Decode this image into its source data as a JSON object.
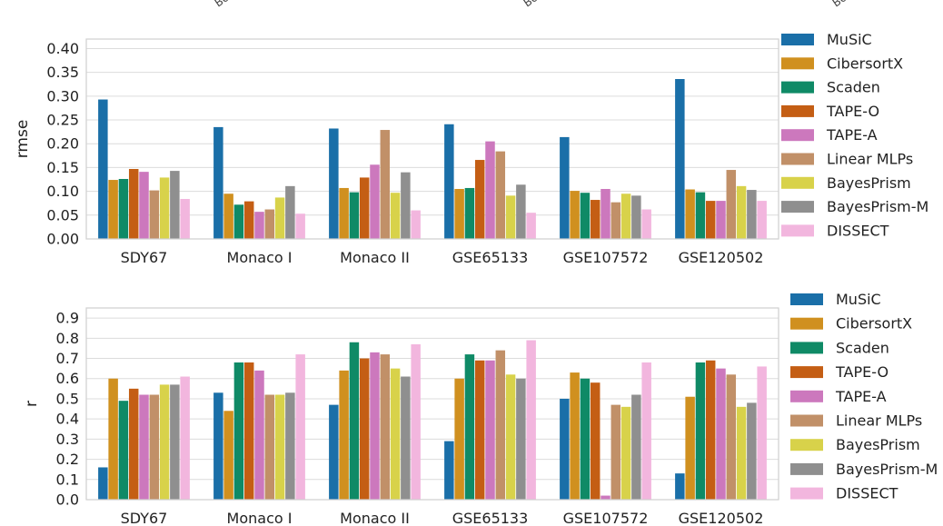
{
  "chart_data": [
    {
      "type": "bar",
      "xlabel": "",
      "ylabel": "rmse",
      "ylim": [
        0,
        0.42
      ],
      "yticks": [
        "0.00",
        "0.05",
        "0.10",
        "0.15",
        "0.20",
        "0.25",
        "0.30",
        "0.35",
        "0.40"
      ],
      "grid": true,
      "legend_position": "right",
      "categories": [
        "SDY67",
        "Monaco I",
        "Monaco II",
        "GSE65133",
        "GSE107572",
        "GSE120502"
      ],
      "series": [
        {
          "name": "MuSiC",
          "color": "#1a6fa8",
          "values": [
            0.293,
            0.235,
            0.232,
            0.241,
            0.214,
            0.336
          ]
        },
        {
          "name": "CibersortX",
          "color": "#d0901f",
          "values": [
            0.124,
            0.095,
            0.107,
            0.105,
            0.101,
            0.104
          ]
        },
        {
          "name": "Scaden",
          "color": "#0f8a66",
          "values": [
            0.126,
            0.072,
            0.098,
            0.107,
            0.097,
            0.098
          ]
        },
        {
          "name": "TAPE-O",
          "color": "#c45e14",
          "values": [
            0.147,
            0.079,
            0.129,
            0.166,
            0.082,
            0.08
          ]
        },
        {
          "name": "TAPE-A",
          "color": "#cc78bd",
          "values": [
            0.141,
            0.057,
            0.156,
            0.205,
            0.105,
            0.08
          ]
        },
        {
          "name": "Linear MLPs",
          "color": "#c19068",
          "values": [
            0.102,
            0.062,
            0.229,
            0.184,
            0.077,
            0.145
          ]
        },
        {
          "name": "BayesPrism",
          "color": "#d8d24a",
          "values": [
            0.129,
            0.087,
            0.097,
            0.091,
            0.095,
            0.111
          ]
        },
        {
          "name": "BayesPrism-M",
          "color": "#8f8f8f",
          "values": [
            0.143,
            0.111,
            0.14,
            0.114,
            0.091,
            0.103
          ]
        },
        {
          "name": "DISSECT",
          "color": "#f2b6de",
          "values": [
            0.084,
            0.053,
            0.06,
            0.055,
            0.062,
            0.08
          ]
        }
      ],
      "legend_labels": [
        "MuSiC",
        "CibersortX",
        "Scaden",
        "TAPE-O",
        "TAPE-A",
        "Linear MLPs",
        "BayesPrism",
        "BayesPrism-M",
        "DISSECT"
      ]
    },
    {
      "type": "bar",
      "xlabel": "",
      "ylabel": "r",
      "ylim": [
        0,
        0.95
      ],
      "yticks": [
        "0.0",
        "0.1",
        "0.2",
        "0.3",
        "0.4",
        "0.5",
        "0.6",
        "0.7",
        "0.8",
        "0.9"
      ],
      "grid": true,
      "legend_position": "right",
      "categories": [
        "SDY67",
        "Monaco I",
        "Monaco II",
        "GSE65133",
        "GSE107572",
        "GSE120502"
      ],
      "series": [
        {
          "name": "MuSiC",
          "color": "#1a6fa8",
          "values": [
            0.16,
            0.53,
            0.47,
            0.29,
            0.5,
            0.13
          ]
        },
        {
          "name": "CibersortX",
          "color": "#d0901f",
          "values": [
            0.6,
            0.44,
            0.64,
            0.6,
            0.63,
            0.51
          ]
        },
        {
          "name": "Scaden",
          "color": "#0f8a66",
          "values": [
            0.49,
            0.68,
            0.78,
            0.72,
            0.6,
            0.68
          ]
        },
        {
          "name": "TAPE-O",
          "color": "#c45e14",
          "values": [
            0.55,
            0.68,
            0.7,
            0.69,
            0.58,
            0.69
          ]
        },
        {
          "name": "TAPE-A",
          "color": "#cc78bd",
          "values": [
            0.52,
            0.64,
            0.73,
            0.69,
            0.02,
            0.65
          ]
        },
        {
          "name": "Linear MLPs",
          "color": "#c19068",
          "values": [
            0.52,
            0.52,
            0.72,
            0.74,
            0.47,
            0.62
          ]
        },
        {
          "name": "BayesPrism",
          "color": "#d8d24a",
          "values": [
            0.57,
            0.52,
            0.65,
            0.62,
            0.46,
            0.46
          ]
        },
        {
          "name": "BayesPrism-M",
          "color": "#8f8f8f",
          "values": [
            0.57,
            0.53,
            0.61,
            0.6,
            0.52,
            0.48
          ]
        },
        {
          "name": "DISSECT",
          "color": "#f2b6de",
          "values": [
            0.61,
            0.72,
            0.77,
            0.79,
            0.68,
            0.66
          ]
        }
      ],
      "legend_labels": [
        "MuSiC",
        "CibersortX",
        "Scaden",
        "TAPE-O",
        "TAPE-A",
        "Linear MLPs",
        "BayesPrism",
        "BayesPrism-M",
        "DISSECT"
      ]
    }
  ],
  "top_cut_labels": [
    "Bo",
    "Bo",
    "Bo"
  ]
}
